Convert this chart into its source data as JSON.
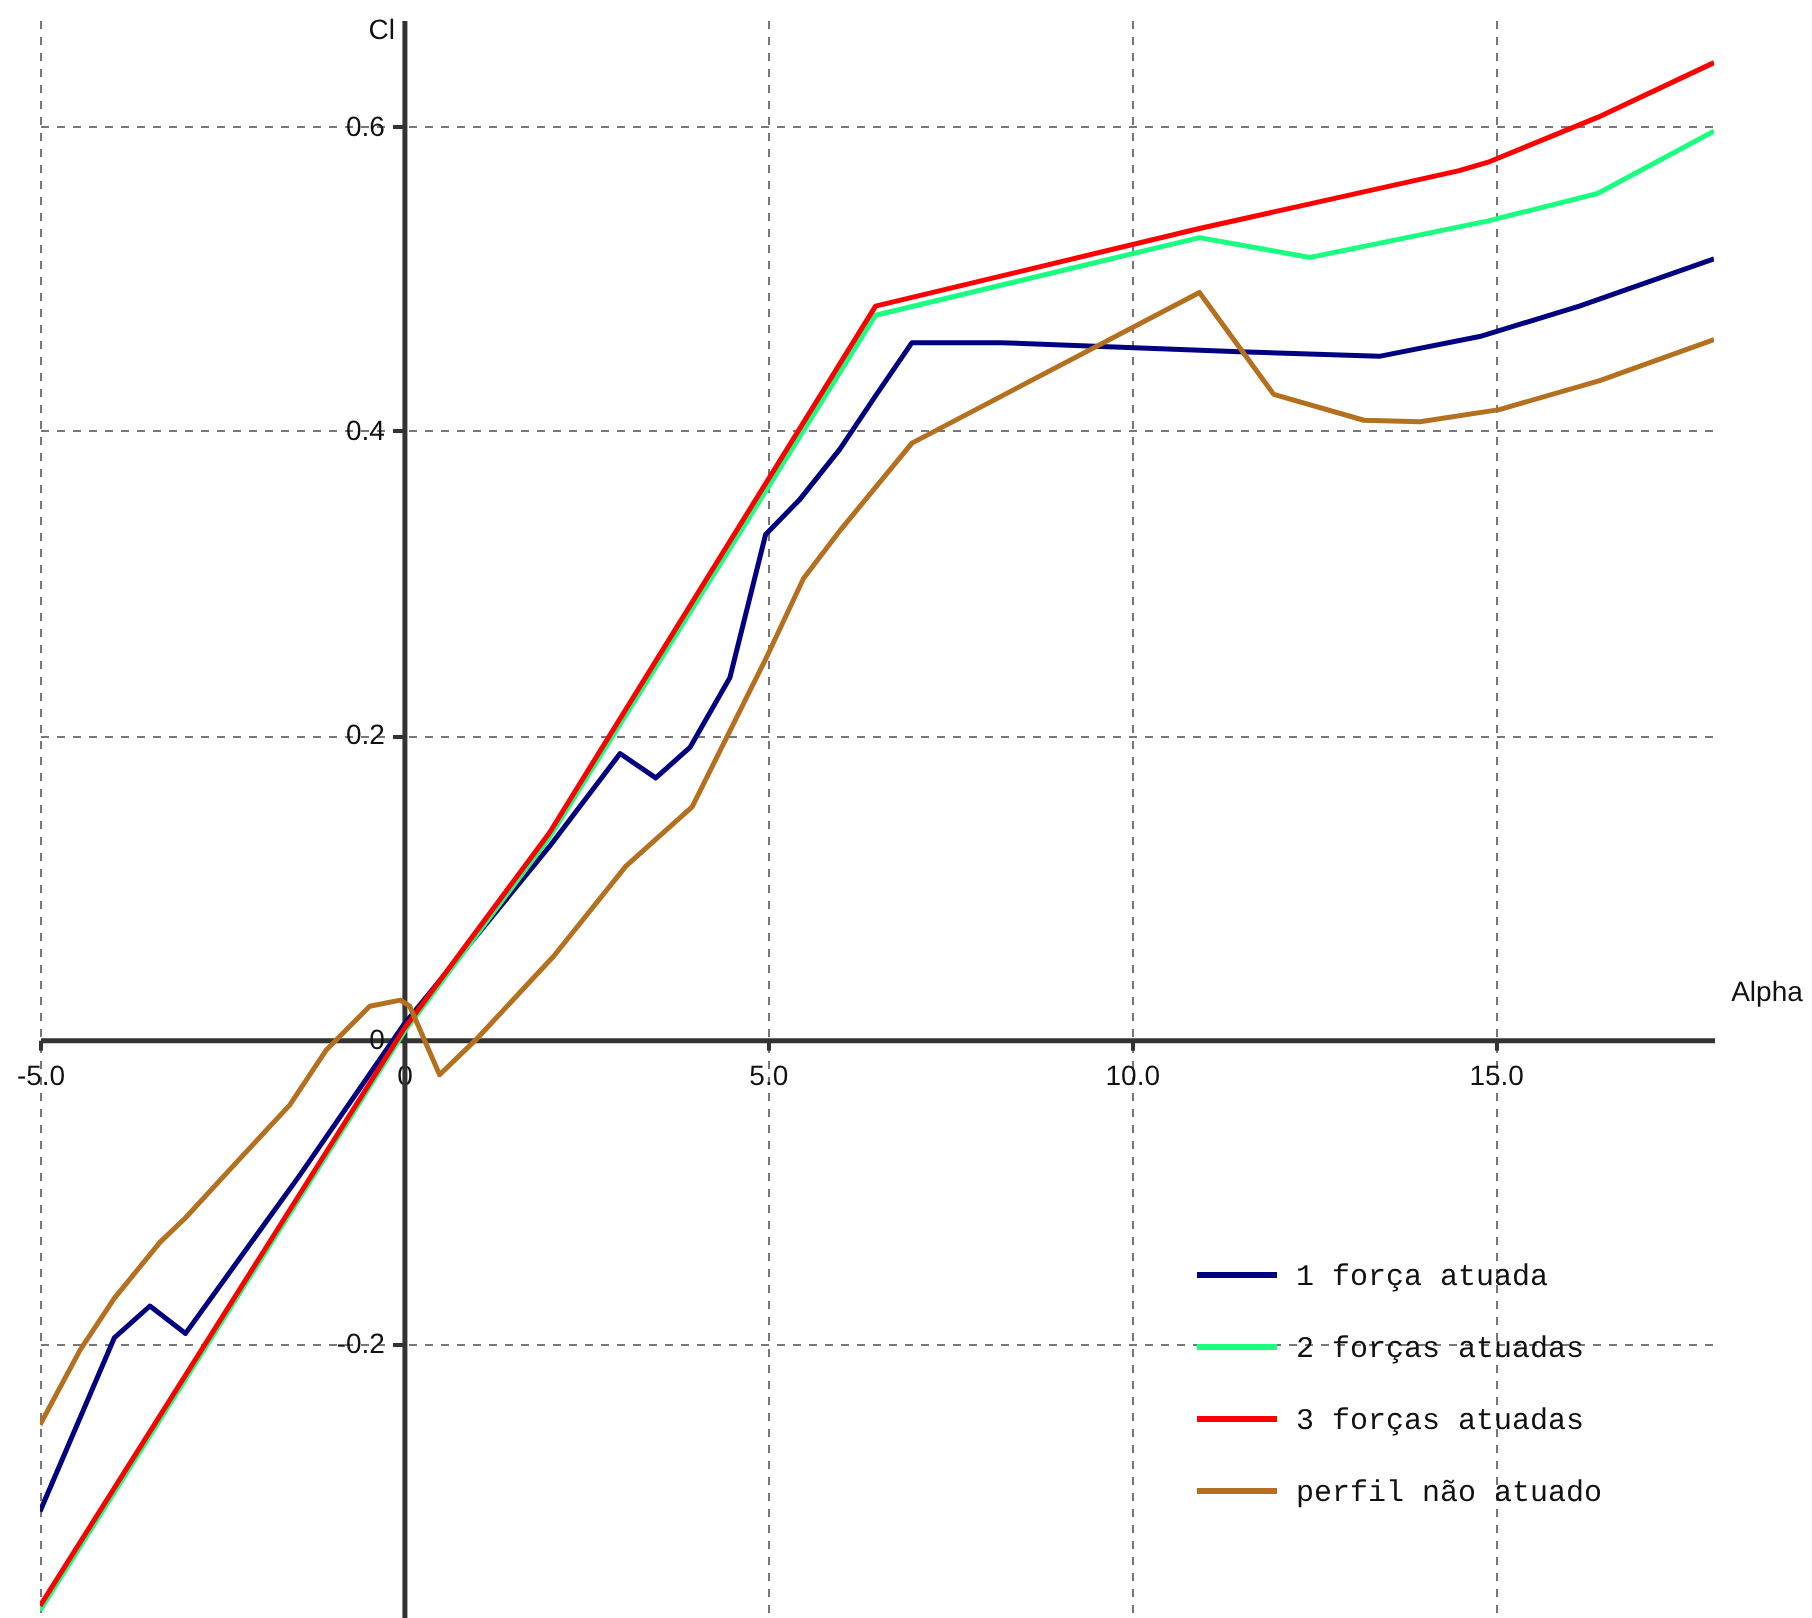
{
  "chart_data": {
    "type": "line",
    "xlabel": "Alpha",
    "ylabel": "Cl",
    "xlim": [
      -5,
      18
    ],
    "ylim": [
      -0.38,
      0.67
    ],
    "xticks": [
      {
        "value": -5,
        "label": "-5.0"
      },
      0,
      {
        "value": 5,
        "label": "5.0"
      },
      {
        "value": 10,
        "label": "10.0"
      },
      {
        "value": 15,
        "label": "15.0"
      }
    ],
    "yticks": [
      -0.2,
      0,
      0.2,
      0.4,
      0.6
    ],
    "grid": true,
    "legend": "bottom right",
    "series": [
      {
        "name": "1 força atuada",
        "color": "#000080",
        "x": [
          -5,
          -3.98,
          -3.49,
          -3.0,
          -1.43,
          0,
          2.0,
          2.97,
          3.46,
          3.93,
          4.48,
          4.97,
          5.44,
          5.99,
          6.48,
          6.98,
          8.2,
          11.48,
          13.4,
          14.78,
          16.15,
          18
        ],
        "values": [
          -0.31,
          -0.196,
          -0.175,
          -0.193,
          -0.089,
          0.01,
          0.127,
          0.188,
          0.172,
          0.192,
          0.238,
          0.332,
          0.355,
          0.388,
          0.423,
          0.458,
          0.458,
          0.452,
          0.449,
          0.462,
          0.482,
          0.513
        ]
      },
      {
        "name": "2 forças atuadas",
        "color": "#1aff80",
        "x": [
          -5,
          0,
          2.0,
          6.48,
          10.93,
          12.45,
          14.9,
          16.4,
          18
        ],
        "values": [
          -0.375,
          0.005,
          0.133,
          0.476,
          0.527,
          0.514,
          0.538,
          0.556,
          0.597
        ]
      },
      {
        "name": "3 forças atuadas",
        "color": "#ff0000",
        "x": [
          -5,
          0,
          2.0,
          6.48,
          10.93,
          14.5,
          14.92,
          16.4,
          18
        ],
        "values": [
          -0.372,
          0.007,
          0.136,
          0.482,
          0.533,
          0.571,
          0.577,
          0.606,
          0.642
        ]
      },
      {
        "name": "perfil não atuado",
        "color": "#b5701f",
        "x": [
          -5,
          -4.45,
          -3.98,
          -3.35,
          -3.0,
          -2.25,
          -1.57,
          -1.07,
          -0.47,
          -0.05,
          0.08,
          0.49,
          0.99,
          2.06,
          3.05,
          3.96,
          4.97,
          5.49,
          6.0,
          6.98,
          10.93,
          11.95,
          13.19,
          13.96,
          15.05,
          16.43,
          18
        ],
        "values": [
          -0.253,
          -0.204,
          -0.17,
          -0.133,
          -0.117,
          -0.078,
          -0.043,
          -0.007,
          0.022,
          0.026,
          0.022,
          -0.023,
          0.0,
          0.055,
          0.114,
          0.153,
          0.25,
          0.303,
          0.335,
          0.392,
          0.491,
          0.424,
          0.407,
          0.406,
          0.414,
          0.433,
          0.46
        ]
      }
    ]
  }
}
